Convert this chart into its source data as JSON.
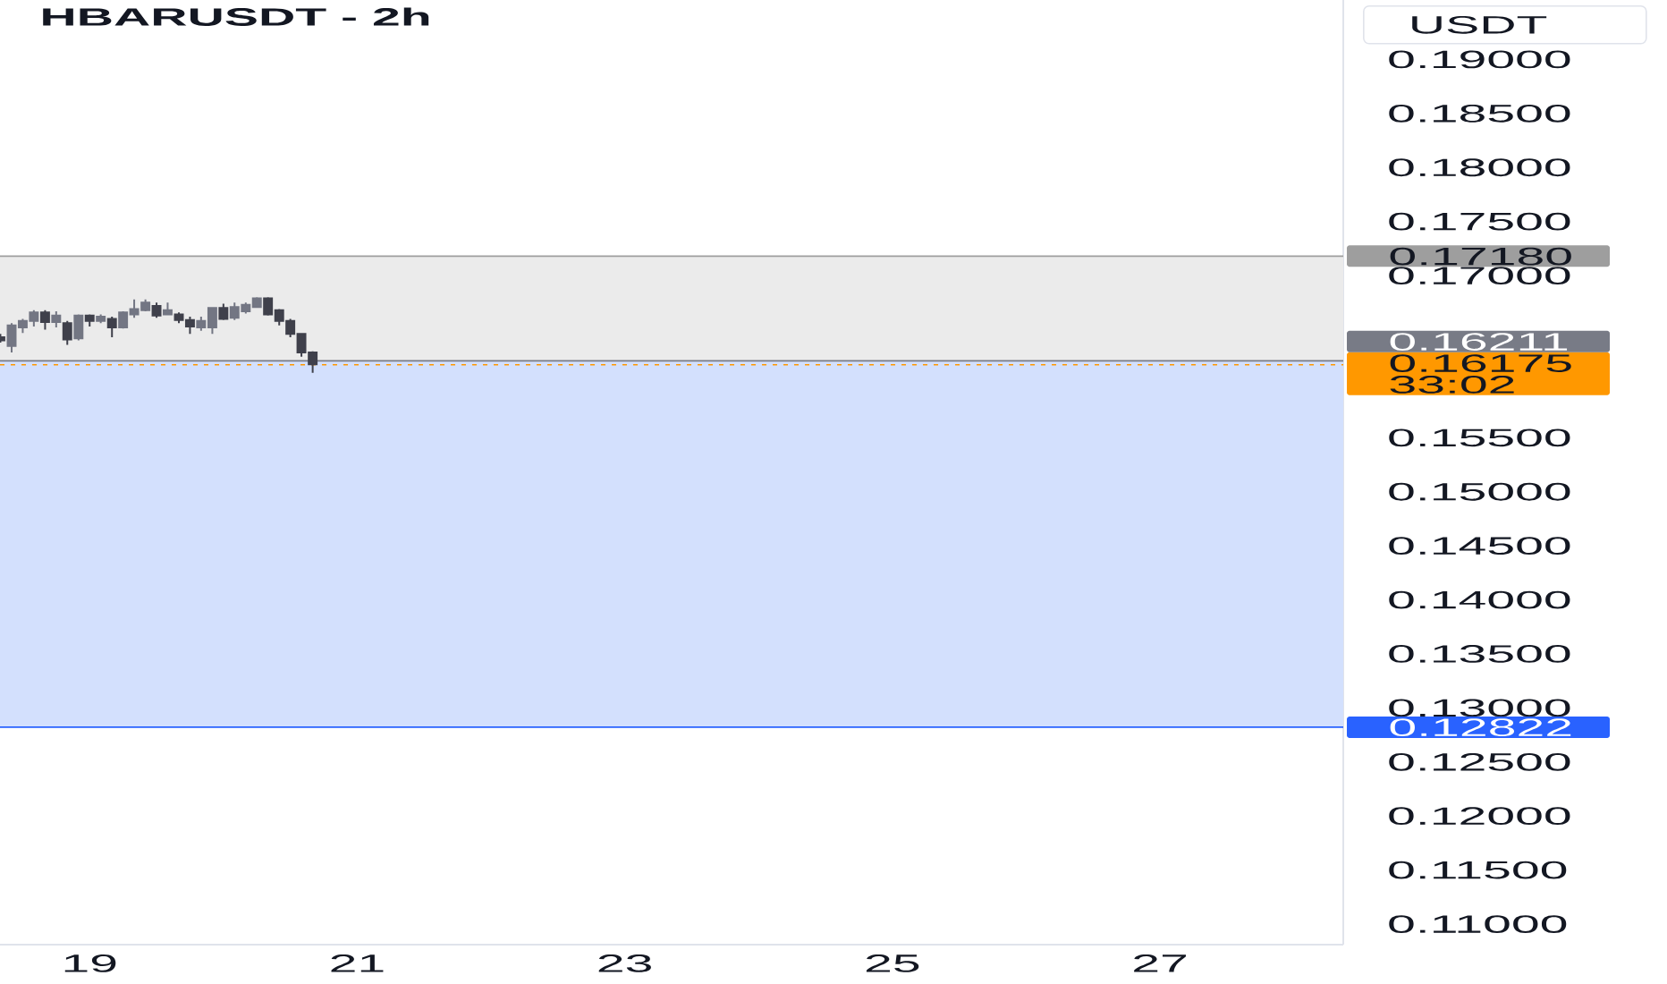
{
  "chart_data": {
    "type": "candlestick",
    "title": "HBARUSDT - 2h",
    "ylabel": "USDT",
    "x": [
      18.333,
      18.417,
      18.5,
      18.583,
      18.667,
      18.75,
      18.833,
      18.917,
      19.0,
      19.083,
      19.167,
      19.25,
      19.333,
      19.417,
      19.5,
      19.583,
      19.667,
      19.75,
      19.833,
      19.917,
      20.0,
      20.083,
      20.167,
      20.25,
      20.333,
      20.417,
      20.5,
      20.583,
      20.667
    ],
    "ohlc": [
      [
        0.1643,
        0.1646,
        0.1638,
        0.164
      ],
      [
        0.1635,
        0.1656,
        0.1629,
        0.1654
      ],
      [
        0.1652,
        0.166,
        0.1647,
        0.1658
      ],
      [
        0.1658,
        0.1668,
        0.1653,
        0.1666
      ],
      [
        0.1666,
        0.1668,
        0.165,
        0.1657
      ],
      [
        0.1657,
        0.1667,
        0.1652,
        0.1663
      ],
      [
        0.1656,
        0.1658,
        0.1636,
        0.1641
      ],
      [
        0.1642,
        0.1664,
        0.164,
        0.1663
      ],
      [
        0.1663,
        0.1664,
        0.1653,
        0.1658
      ],
      [
        0.1658,
        0.1664,
        0.1656,
        0.1662
      ],
      [
        0.166,
        0.1662,
        0.1643,
        0.1652
      ],
      [
        0.1652,
        0.1667,
        0.1651,
        0.1666
      ],
      [
        0.1664,
        0.1678,
        0.1661,
        0.1669
      ],
      [
        0.1668,
        0.1678,
        0.1667,
        0.1675
      ],
      [
        0.1672,
        0.1675,
        0.1661,
        0.1663
      ],
      [
        0.1664,
        0.1675,
        0.1664,
        0.1668
      ],
      [
        0.1664,
        0.1666,
        0.1656,
        0.1659
      ],
      [
        0.1659,
        0.1662,
        0.1646,
        0.1653
      ],
      [
        0.1652,
        0.1662,
        0.1649,
        0.1658
      ],
      [
        0.1652,
        0.1671,
        0.1646,
        0.167
      ],
      [
        0.167,
        0.1674,
        0.1659,
        0.166
      ],
      [
        0.1661,
        0.1675,
        0.1659,
        0.1671
      ],
      [
        0.1667,
        0.1675,
        0.1665,
        0.1673
      ],
      [
        0.1671,
        0.168,
        0.167,
        0.1679
      ],
      [
        0.1679,
        0.168,
        0.1663,
        0.1664
      ],
      [
        0.1668,
        0.1669,
        0.1654,
        0.1658
      ],
      [
        0.1658,
        0.166,
        0.1643,
        0.1646
      ],
      [
        0.1646,
        0.1647,
        0.1625,
        0.1629
      ],
      [
        0.1629,
        0.163,
        0.161,
        0.1618
      ]
    ],
    "colors": [
      "#3f404b",
      "#737683",
      "#737683",
      "#737683",
      "#3f404b",
      "#737683",
      "#3f404b",
      "#737683",
      "#3f404b",
      "#737683",
      "#3f404b",
      "#737683",
      "#737683",
      "#737683",
      "#3f404b",
      "#737683",
      "#3f404b",
      "#3f404b",
      "#737683",
      "#737683",
      "#3f404b",
      "#737683",
      "#737683",
      "#737683",
      "#3f404b",
      "#3f404b",
      "#3f404b",
      "#3f404b",
      "#3f404b"
    ],
    "xlim": [
      18.33,
      28.37
    ],
    "xticks": [
      19,
      21,
      23,
      25,
      27
    ],
    "ylim": [
      0.1081,
      0.1955
    ],
    "yticks": [
      {
        "value": 0.19,
        "label": "0.19000"
      },
      {
        "value": 0.185,
        "label": "0.18500"
      },
      {
        "value": 0.18,
        "label": "0.18000"
      },
      {
        "value": 0.175,
        "label": "0.17500"
      },
      {
        "value": 0.17,
        "label": "0.17000"
      },
      {
        "value": 0.155,
        "label": "0.15500"
      },
      {
        "value": 0.15,
        "label": "0.15000"
      },
      {
        "value": 0.145,
        "label": "0.14500"
      },
      {
        "value": 0.14,
        "label": "0.14000"
      },
      {
        "value": 0.135,
        "label": "0.13500"
      },
      {
        "value": 0.13,
        "label": "0.13000"
      },
      {
        "value": 0.125,
        "label": "0.12500"
      },
      {
        "value": 0.12,
        "label": "0.12000"
      },
      {
        "value": 0.115,
        "label": "0.11500"
      },
      {
        "value": 0.11,
        "label": "0.11000"
      }
    ],
    "bands": [
      {
        "axis": "y",
        "from": 0.16211,
        "to": 0.1718,
        "color": "#ebebeb"
      },
      {
        "axis": "y",
        "from": 0.12822,
        "to": 0.16211,
        "color": "#d3e0fd"
      }
    ],
    "ref_lines": [
      {
        "axis": "y",
        "value": 0.1718,
        "label": "0.17180",
        "color": "#9e9e9e"
      },
      {
        "axis": "y",
        "value": 0.16211,
        "label": "0.16211",
        "color": "#787b86"
      },
      {
        "axis": "y",
        "value": 0.16175,
        "label": "0.16175 33:02",
        "color": "#ff9800",
        "line_style": "dotted"
      },
      {
        "axis": "y",
        "value": 0.12822,
        "label": "0.12822",
        "color": "#2962ff"
      }
    ]
  }
}
